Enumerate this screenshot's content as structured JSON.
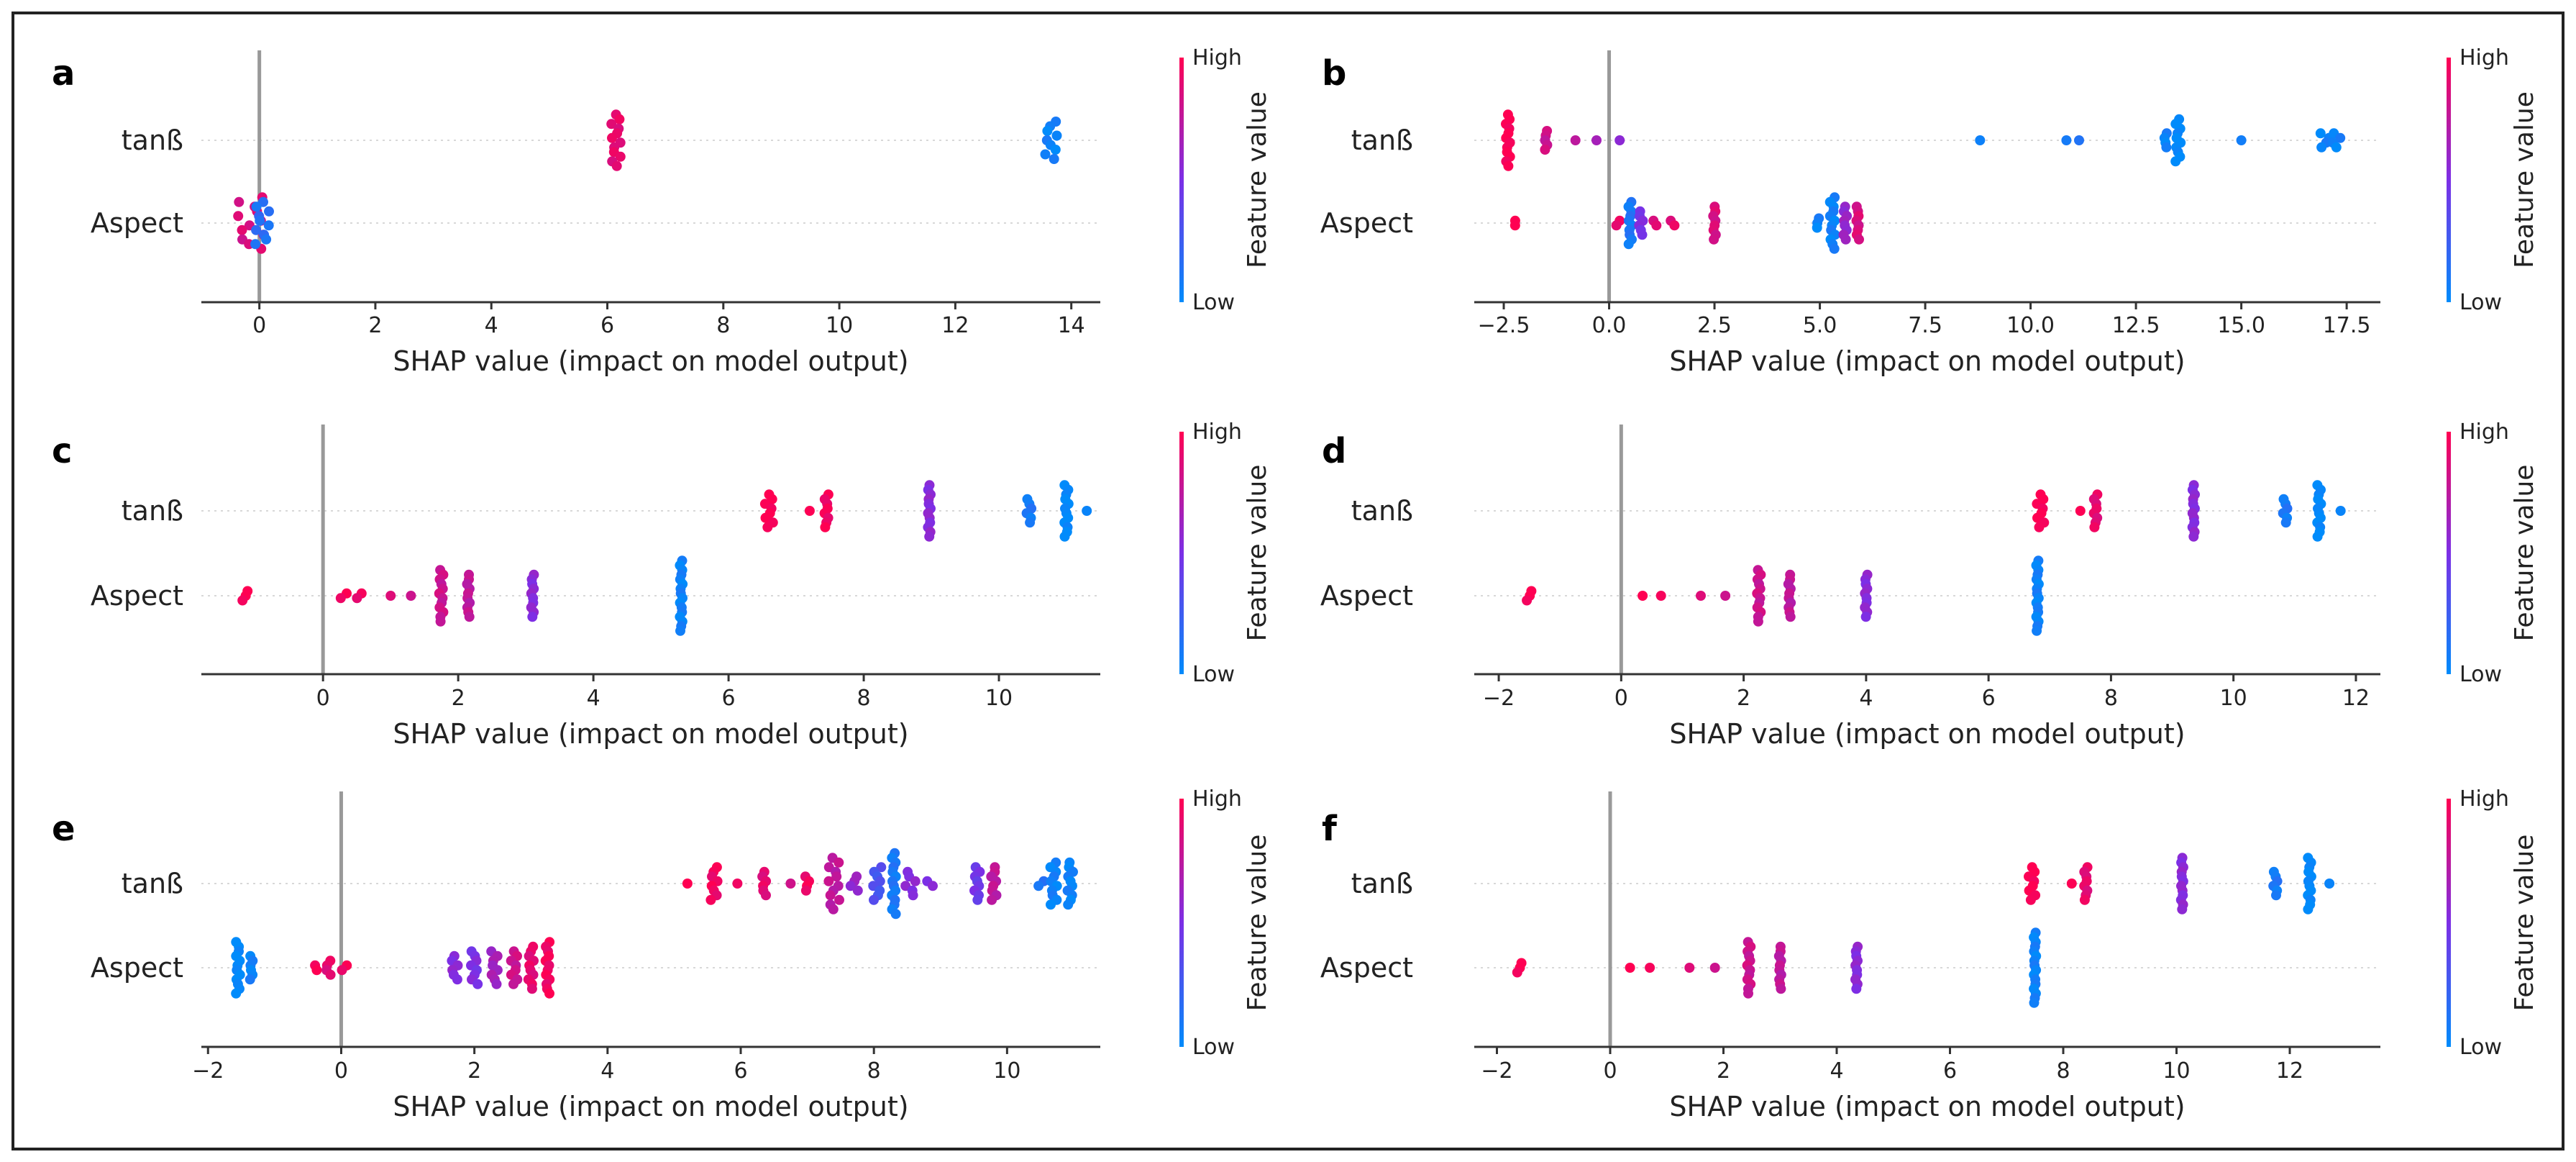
{
  "figure": {
    "panel_layout": "3 rows x 2 columns"
  },
  "colors": {
    "high": "#ff0052",
    "low": "#008bfb",
    "zero_line": "#999999",
    "grid": "#d8d8d8",
    "axis": "#333333"
  },
  "chart_data": [
    {
      "panel": "a",
      "type": "scatter",
      "subtype": "shap-beeswarm",
      "xlabel": "SHAP value (impact on model output)",
      "xlim": [
        -1.0,
        14.5
      ],
      "xticks": [
        0,
        2,
        4,
        6,
        8,
        10,
        12,
        14
      ],
      "xtick_labels": [
        "0",
        "2",
        "4",
        "6",
        "8",
        "10",
        "12",
        "14"
      ],
      "features": [
        "tanß",
        "Aspect"
      ],
      "colorbar": {
        "high_label": "High",
        "low_label": "Low",
        "title": "Feature value"
      },
      "clusters": [
        {
          "feature": 0,
          "x": 6.15,
          "value": 0.9,
          "count": 12,
          "spread": 0.08
        },
        {
          "feature": 0,
          "x": 13.65,
          "value": 0.05,
          "count": 9,
          "spread": 0.1
        },
        {
          "feature": 1,
          "x": -0.15,
          "value": 0.85,
          "count": 12,
          "spread": 0.22
        },
        {
          "feature": 1,
          "x": 0.05,
          "value": 0.15,
          "count": 10,
          "spread": 0.12
        }
      ]
    },
    {
      "panel": "b",
      "type": "scatter",
      "subtype": "shap-beeswarm",
      "xlabel": "SHAP value (impact on model output)",
      "xlim": [
        -3.2,
        18.3
      ],
      "xticks": [
        -2.5,
        0.0,
        2.5,
        5.0,
        7.5,
        10.0,
        12.5,
        15.0,
        17.5
      ],
      "xtick_labels": [
        "−2.5",
        "0.0",
        "2.5",
        "5.0",
        "7.5",
        "10.0",
        "12.5",
        "15.0",
        "17.5"
      ],
      "features": [
        "tanß",
        "Aspect"
      ],
      "colorbar": {
        "high_label": "High",
        "low_label": "Low",
        "title": "Feature value"
      },
      "clusters": [
        {
          "feature": 0,
          "x": -2.4,
          "value": 1.0,
          "count": 12,
          "spread": 0.05
        },
        {
          "feature": 0,
          "x": -1.5,
          "value": 0.8,
          "count": 5,
          "spread": 0.03
        },
        {
          "feature": 0,
          "x": -0.8,
          "value": 0.7,
          "count": 1,
          "spread": 0
        },
        {
          "feature": 0,
          "x": -0.3,
          "value": 0.65,
          "count": 1,
          "spread": 0
        },
        {
          "feature": 0,
          "x": 0.25,
          "value": 0.6,
          "count": 1,
          "spread": 0
        },
        {
          "feature": 0,
          "x": 8.8,
          "value": 0.1,
          "count": 1,
          "spread": 0
        },
        {
          "feature": 0,
          "x": 10.85,
          "value": 0.1,
          "count": 1,
          "spread": 0
        },
        {
          "feature": 0,
          "x": 11.15,
          "value": 0.1,
          "count": 1,
          "spread": 0
        },
        {
          "feature": 0,
          "x": 13.2,
          "value": 0.05,
          "count": 4,
          "spread": 0.03
        },
        {
          "feature": 0,
          "x": 13.5,
          "value": 0.0,
          "count": 10,
          "spread": 0.06
        },
        {
          "feature": 0,
          "x": 15.0,
          "value": 0.1,
          "count": 1,
          "spread": 0
        },
        {
          "feature": 0,
          "x": 17.0,
          "value": 0.05,
          "count": 4,
          "spread": 0.12
        },
        {
          "feature": 0,
          "x": 17.25,
          "value": 0.05,
          "count": 4,
          "spread": 0.1
        },
        {
          "feature": 1,
          "x": -2.25,
          "value": 1.0,
          "count": 2,
          "spread": 0.05
        },
        {
          "feature": 1,
          "x": 0.2,
          "value": 0.9,
          "count": 2,
          "spread": 0.05
        },
        {
          "feature": 1,
          "x": 0.5,
          "value": 0.1,
          "count": 10,
          "spread": 0.04
        },
        {
          "feature": 1,
          "x": 0.75,
          "value": 0.5,
          "count": 6,
          "spread": 0.05
        },
        {
          "feature": 1,
          "x": 1.1,
          "value": 0.9,
          "count": 2,
          "spread": 0.05
        },
        {
          "feature": 1,
          "x": 1.5,
          "value": 0.9,
          "count": 2,
          "spread": 0.05
        },
        {
          "feature": 1,
          "x": 2.5,
          "value": 0.85,
          "count": 8,
          "spread": 0.03
        },
        {
          "feature": 1,
          "x": 4.95,
          "value": 0.05,
          "count": 3,
          "spread": 0.03
        },
        {
          "feature": 1,
          "x": 5.3,
          "value": 0.05,
          "count": 12,
          "spread": 0.06
        },
        {
          "feature": 1,
          "x": 5.6,
          "value": 0.6,
          "count": 8,
          "spread": 0.04
        },
        {
          "feature": 1,
          "x": 5.9,
          "value": 0.85,
          "count": 8,
          "spread": 0.03
        }
      ]
    },
    {
      "panel": "c",
      "type": "scatter",
      "subtype": "shap-beeswarm",
      "xlabel": "SHAP value (impact on model output)",
      "xlim": [
        -1.8,
        11.5
      ],
      "xticks": [
        0,
        2,
        4,
        6,
        8,
        10
      ],
      "xtick_labels": [
        "0",
        "2",
        "4",
        "6",
        "8",
        "10"
      ],
      "features": [
        "tanß",
        "Aspect"
      ],
      "colorbar": {
        "high_label": "High",
        "low_label": "Low",
        "title": "Feature value"
      },
      "clusters": [
        {
          "feature": 0,
          "x": 6.6,
          "value": 1.0,
          "count": 8,
          "spread": 0.06
        },
        {
          "feature": 0,
          "x": 7.2,
          "value": 0.95,
          "count": 1,
          "spread": 0
        },
        {
          "feature": 0,
          "x": 7.45,
          "value": 0.95,
          "count": 8,
          "spread": 0.03
        },
        {
          "feature": 0,
          "x": 8.97,
          "value": 0.55,
          "count": 12,
          "spread": 0.02
        },
        {
          "feature": 0,
          "x": 10.45,
          "value": 0.1,
          "count": 6,
          "spread": 0.04
        },
        {
          "feature": 0,
          "x": 11.0,
          "value": 0.0,
          "count": 12,
          "spread": 0.03
        },
        {
          "feature": 0,
          "x": 11.3,
          "value": 0.05,
          "count": 1,
          "spread": 0
        },
        {
          "feature": 1,
          "x": -1.15,
          "value": 1.0,
          "count": 3,
          "spread": 0.05
        },
        {
          "feature": 1,
          "x": 0.3,
          "value": 0.95,
          "count": 2,
          "spread": 0.05
        },
        {
          "feature": 1,
          "x": 0.55,
          "value": 0.95,
          "count": 2,
          "spread": 0.05
        },
        {
          "feature": 1,
          "x": 1.0,
          "value": 0.9,
          "count": 1,
          "spread": 0
        },
        {
          "feature": 1,
          "x": 1.3,
          "value": 0.85,
          "count": 1,
          "spread": 0
        },
        {
          "feature": 1,
          "x": 1.75,
          "value": 0.8,
          "count": 12,
          "spread": 0.03
        },
        {
          "feature": 1,
          "x": 2.15,
          "value": 0.75,
          "count": 10,
          "spread": 0.02
        },
        {
          "feature": 1,
          "x": 3.1,
          "value": 0.55,
          "count": 10,
          "spread": 0.02
        },
        {
          "feature": 1,
          "x": 5.3,
          "value": 0.05,
          "count": 16,
          "spread": 0.02
        }
      ]
    },
    {
      "panel": "d",
      "type": "scatter",
      "subtype": "shap-beeswarm",
      "xlabel": "SHAP value (impact on model output)",
      "xlim": [
        -2.4,
        12.4
      ],
      "xticks": [
        -2,
        0,
        2,
        4,
        6,
        8,
        10,
        12
      ],
      "xtick_labels": [
        "−2",
        "0",
        "2",
        "4",
        "6",
        "8",
        "10",
        "12"
      ],
      "features": [
        "tanß",
        "Aspect"
      ],
      "colorbar": {
        "high_label": "High",
        "low_label": "Low",
        "title": "Feature value"
      },
      "clusters": [
        {
          "feature": 0,
          "x": 6.85,
          "value": 1.0,
          "count": 8,
          "spread": 0.06
        },
        {
          "feature": 0,
          "x": 7.5,
          "value": 0.95,
          "count": 1,
          "spread": 0
        },
        {
          "feature": 0,
          "x": 7.75,
          "value": 0.9,
          "count": 8,
          "spread": 0.03
        },
        {
          "feature": 0,
          "x": 9.35,
          "value": 0.55,
          "count": 12,
          "spread": 0.02
        },
        {
          "feature": 0,
          "x": 10.85,
          "value": 0.1,
          "count": 6,
          "spread": 0.04
        },
        {
          "feature": 0,
          "x": 11.4,
          "value": 0.0,
          "count": 12,
          "spread": 0.03
        },
        {
          "feature": 0,
          "x": 11.75,
          "value": 0.05,
          "count": 1,
          "spread": 0
        },
        {
          "feature": 1,
          "x": -1.5,
          "value": 1.0,
          "count": 3,
          "spread": 0.05
        },
        {
          "feature": 1,
          "x": 0.35,
          "value": 0.95,
          "count": 1,
          "spread": 0
        },
        {
          "feature": 1,
          "x": 0.65,
          "value": 0.95,
          "count": 1,
          "spread": 0
        },
        {
          "feature": 1,
          "x": 1.3,
          "value": 0.9,
          "count": 1,
          "spread": 0
        },
        {
          "feature": 1,
          "x": 1.7,
          "value": 0.85,
          "count": 1,
          "spread": 0
        },
        {
          "feature": 1,
          "x": 2.25,
          "value": 0.8,
          "count": 12,
          "spread": 0.03
        },
        {
          "feature": 1,
          "x": 2.75,
          "value": 0.75,
          "count": 10,
          "spread": 0.02
        },
        {
          "feature": 1,
          "x": 4.0,
          "value": 0.55,
          "count": 10,
          "spread": 0.02
        },
        {
          "feature": 1,
          "x": 6.8,
          "value": 0.05,
          "count": 16,
          "spread": 0.02
        }
      ]
    },
    {
      "panel": "e",
      "type": "scatter",
      "subtype": "shap-beeswarm",
      "xlabel": "SHAP value (impact on model output)",
      "xlim": [
        -2.1,
        11.4
      ],
      "xticks": [
        -2,
        0,
        2,
        4,
        6,
        8,
        10
      ],
      "xtick_labels": [
        "−2",
        "0",
        "2",
        "4",
        "6",
        "8",
        "10"
      ],
      "features": [
        "tanß",
        "Aspect"
      ],
      "colorbar": {
        "high_label": "High",
        "low_label": "Low",
        "title": "Feature value"
      },
      "clusters": [
        {
          "feature": 0,
          "x": 5.2,
          "value": 1.0,
          "count": 1,
          "spread": 0
        },
        {
          "feature": 0,
          "x": 5.6,
          "value": 0.95,
          "count": 8,
          "spread": 0.05
        },
        {
          "feature": 0,
          "x": 5.95,
          "value": 0.9,
          "count": 1,
          "spread": 0
        },
        {
          "feature": 0,
          "x": 6.35,
          "value": 0.9,
          "count": 6,
          "spread": 0.03
        },
        {
          "feature": 0,
          "x": 6.75,
          "value": 0.85,
          "count": 1,
          "spread": 0
        },
        {
          "feature": 0,
          "x": 7.0,
          "value": 0.95,
          "count": 4,
          "spread": 0.03
        },
        {
          "feature": 0,
          "x": 7.4,
          "value": 0.75,
          "count": 12,
          "spread": 0.08
        },
        {
          "feature": 0,
          "x": 7.7,
          "value": 0.6,
          "count": 4,
          "spread": 0.06
        },
        {
          "feature": 0,
          "x": 8.05,
          "value": 0.3,
          "count": 8,
          "spread": 0.06
        },
        {
          "feature": 0,
          "x": 8.3,
          "value": 0.1,
          "count": 14,
          "spread": 0.03
        },
        {
          "feature": 0,
          "x": 8.55,
          "value": 0.55,
          "count": 6,
          "spread": 0.08
        },
        {
          "feature": 0,
          "x": 8.85,
          "value": 0.55,
          "count": 2,
          "spread": 0.05
        },
        {
          "feature": 0,
          "x": 9.55,
          "value": 0.45,
          "count": 8,
          "spread": 0.04
        },
        {
          "feature": 0,
          "x": 9.8,
          "value": 0.75,
          "count": 8,
          "spread": 0.04
        },
        {
          "feature": 0,
          "x": 10.5,
          "value": 0.1,
          "count": 2,
          "spread": 0.05
        },
        {
          "feature": 0,
          "x": 10.7,
          "value": 0.05,
          "count": 10,
          "spread": 0.05
        },
        {
          "feature": 0,
          "x": 10.95,
          "value": 0.05,
          "count": 10,
          "spread": 0.04
        },
        {
          "feature": 1,
          "x": -1.55,
          "value": 0.0,
          "count": 12,
          "spread": 0.03
        },
        {
          "feature": 1,
          "x": -1.35,
          "value": 0.05,
          "count": 6,
          "spread": 0.02
        },
        {
          "feature": 1,
          "x": -0.4,
          "value": 0.95,
          "count": 2,
          "spread": 0.05
        },
        {
          "feature": 1,
          "x": -0.2,
          "value": 0.9,
          "count": 4,
          "spread": 0.04
        },
        {
          "feature": 1,
          "x": 0.05,
          "value": 0.95,
          "count": 2,
          "spread": 0.04
        },
        {
          "feature": 1,
          "x": 1.7,
          "value": 0.55,
          "count": 6,
          "spread": 0.05
        },
        {
          "feature": 1,
          "x": 2.0,
          "value": 0.5,
          "count": 8,
          "spread": 0.05
        },
        {
          "feature": 1,
          "x": 2.3,
          "value": 0.65,
          "count": 8,
          "spread": 0.05
        },
        {
          "feature": 1,
          "x": 2.6,
          "value": 0.8,
          "count": 8,
          "spread": 0.05
        },
        {
          "feature": 1,
          "x": 2.85,
          "value": 0.9,
          "count": 10,
          "spread": 0.04
        },
        {
          "feature": 1,
          "x": 3.1,
          "value": 0.95,
          "count": 12,
          "spread": 0.03
        }
      ]
    },
    {
      "panel": "f",
      "type": "scatter",
      "subtype": "shap-beeswarm",
      "xlabel": "SHAP value (impact on model output)",
      "xlim": [
        -2.4,
        13.6
      ],
      "xticks": [
        -2,
        0,
        2,
        4,
        6,
        8,
        10,
        12
      ],
      "xtick_labels": [
        "−2",
        "0",
        "2",
        "4",
        "6",
        "8",
        "10",
        "12"
      ],
      "features": [
        "tanß",
        "Aspect"
      ],
      "colorbar": {
        "high_label": "High",
        "low_label": "Low",
        "title": "Feature value"
      },
      "clusters": [
        {
          "feature": 0,
          "x": 7.45,
          "value": 1.0,
          "count": 8,
          "spread": 0.06
        },
        {
          "feature": 0,
          "x": 8.15,
          "value": 0.95,
          "count": 1,
          "spread": 0
        },
        {
          "feature": 0,
          "x": 8.4,
          "value": 0.9,
          "count": 8,
          "spread": 0.03
        },
        {
          "feature": 0,
          "x": 10.1,
          "value": 0.55,
          "count": 12,
          "spread": 0.02
        },
        {
          "feature": 0,
          "x": 11.75,
          "value": 0.1,
          "count": 6,
          "spread": 0.04
        },
        {
          "feature": 0,
          "x": 12.35,
          "value": 0.0,
          "count": 12,
          "spread": 0.03
        },
        {
          "feature": 0,
          "x": 12.7,
          "value": 0.05,
          "count": 1,
          "spread": 0
        },
        {
          "feature": 1,
          "x": -1.6,
          "value": 1.0,
          "count": 3,
          "spread": 0.05
        },
        {
          "feature": 1,
          "x": 0.35,
          "value": 0.95,
          "count": 1,
          "spread": 0
        },
        {
          "feature": 1,
          "x": 0.7,
          "value": 0.95,
          "count": 1,
          "spread": 0
        },
        {
          "feature": 1,
          "x": 1.4,
          "value": 0.9,
          "count": 1,
          "spread": 0
        },
        {
          "feature": 1,
          "x": 1.85,
          "value": 0.85,
          "count": 1,
          "spread": 0
        },
        {
          "feature": 1,
          "x": 2.45,
          "value": 0.8,
          "count": 12,
          "spread": 0.03
        },
        {
          "feature": 1,
          "x": 3.0,
          "value": 0.75,
          "count": 10,
          "spread": 0.02
        },
        {
          "feature": 1,
          "x": 4.35,
          "value": 0.55,
          "count": 10,
          "spread": 0.02
        },
        {
          "feature": 1,
          "x": 7.5,
          "value": 0.05,
          "count": 16,
          "spread": 0.02
        }
      ]
    }
  ]
}
